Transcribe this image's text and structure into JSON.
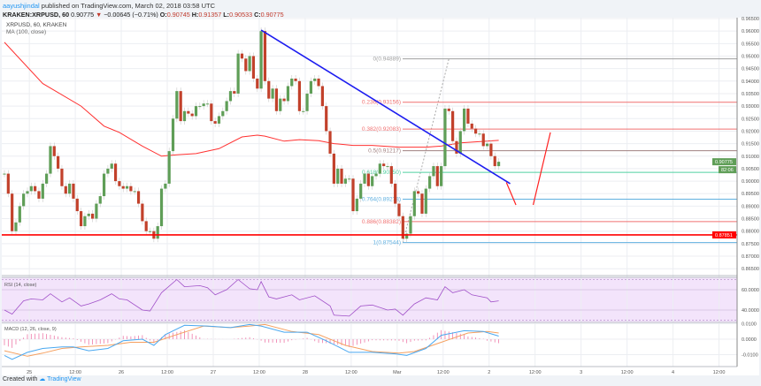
{
  "header": {
    "author": "aayushjindal",
    "published": "published on TradingView.com, March 02, 2018 03:58 UTC",
    "symbol": "KRAKEN:XRPUSD, 60",
    "last": "0.90775",
    "change": "−0.00645 (−0.71%)",
    "o_label": "O:",
    "o": "0.90745",
    "h_label": "H:",
    "h": "0.91357",
    "l_label": "L:",
    "l": "0.90533",
    "c_label": "C:",
    "c": "0.90775"
  },
  "footer": {
    "created": "Created with",
    "brand": "TradingView"
  },
  "colors": {
    "up": "#5f9e57",
    "down": "#c2412b",
    "ma": "#ff3030",
    "trend": "#1d1df0",
    "support": "#ff0000",
    "rsi": "#a050c8",
    "macd": "#4aa8f0",
    "signal": "#f5a060",
    "hist": "#ee7aa8",
    "last_price": "#5f9e57"
  },
  "chart_data": {
    "type": "candlestick",
    "pane_label": "XRPUSD, 60, KRAKEN",
    "ma_label": "MA (100, close)",
    "ylim": [
      0.8625,
      0.9665
    ],
    "y_ticks": [
      "0.86500",
      "0.87000",
      "0.87500",
      "0.88000",
      "0.88500",
      "0.89000",
      "0.89500",
      "0.90000",
      "0.90500",
      "0.91000",
      "0.91500",
      "0.92000",
      "0.92500",
      "0.93000",
      "0.93500",
      "0.94000",
      "0.94500",
      "0.95000",
      "0.95500",
      "0.96000",
      "0.96500"
    ],
    "x_ticks": [
      {
        "bar": 6.5,
        "label": "25"
      },
      {
        "bar": 18.5,
        "label": "12:00"
      },
      {
        "bar": 30.5,
        "label": "26"
      },
      {
        "bar": 42.5,
        "label": "12:00"
      },
      {
        "bar": 54.5,
        "label": "27"
      },
      {
        "bar": 66.5,
        "label": "12:00"
      },
      {
        "bar": 78.5,
        "label": "28"
      },
      {
        "bar": 90.5,
        "label": "12:00"
      },
      {
        "bar": 102.5,
        "label": "Mar"
      },
      {
        "bar": 114.5,
        "label": "12:00"
      },
      {
        "bar": 126.5,
        "label": "2"
      },
      {
        "bar": 138.5,
        "label": "12:00"
      },
      {
        "bar": 150.5,
        "label": "3"
      },
      {
        "bar": 162.5,
        "label": "12:00"
      },
      {
        "bar": 174.5,
        "label": "4"
      },
      {
        "bar": 186.5,
        "label": "12:00"
      }
    ],
    "closes": [
      0.903,
      0.895,
      0.88,
      0.8835,
      0.89,
      0.895,
      0.896,
      0.898,
      0.896,
      0.893,
      0.899,
      0.903,
      0.914,
      0.91,
      0.905,
      0.898,
      0.895,
      0.899,
      0.893,
      0.888,
      0.882,
      0.886,
      0.887,
      0.885,
      0.891,
      0.894,
      0.903,
      0.905,
      0.907,
      0.9,
      0.898,
      0.897,
      0.898,
      0.896,
      0.896,
      0.891,
      0.884,
      0.88,
      0.88,
      0.877,
      0.882,
      0.897,
      0.899,
      0.912,
      0.925,
      0.936,
      0.924,
      0.928,
      0.927,
      0.926,
      0.93,
      0.93,
      0.931,
      0.931,
      0.924,
      0.923,
      0.926,
      0.928,
      0.932,
      0.936,
      0.935,
      0.951,
      0.949,
      0.944,
      0.95,
      0.941,
      0.937,
      0.96,
      0.94,
      0.933,
      0.937,
      0.928,
      0.933,
      0.932,
      0.938,
      0.941,
      0.94,
      0.928,
      0.928,
      0.935,
      0.94,
      0.941,
      0.938,
      0.93,
      0.92,
      0.911,
      0.899,
      0.905,
      0.899,
      0.901,
      0.901,
      0.888,
      0.893,
      0.899,
      0.903,
      0.898,
      0.902,
      0.903,
      0.907,
      0.906,
      0.906,
      0.899,
      0.891,
      0.886,
      0.877,
      0.879,
      0.886,
      0.896,
      0.895,
      0.887,
      0.897,
      0.902,
      0.906,
      0.898,
      0.906,
      0.929,
      0.928,
      0.916,
      0.911,
      0.92,
      0.929,
      0.923,
      0.921,
      0.919,
      0.919,
      0.914,
      0.915,
      0.91,
      0.906,
      0.90775
    ],
    "ma100": [
      [
        0,
        0.9555
      ],
      [
        10,
        0.939
      ],
      [
        20,
        0.93
      ],
      [
        26,
        0.922
      ],
      [
        30,
        0.9195
      ],
      [
        36,
        0.914
      ],
      [
        41,
        0.91
      ],
      [
        45,
        0.9105
      ],
      [
        50,
        0.911
      ],
      [
        56,
        0.913
      ],
      [
        62,
        0.9177
      ],
      [
        66,
        0.9184
      ],
      [
        68,
        0.918
      ],
      [
        73,
        0.916
      ],
      [
        77,
        0.9166
      ],
      [
        82,
        0.9162
      ],
      [
        86,
        0.915
      ],
      [
        91,
        0.9143
      ],
      [
        96,
        0.9143
      ],
      [
        103,
        0.9136
      ],
      [
        110,
        0.9136
      ],
      [
        114,
        0.914
      ],
      [
        119,
        0.9153
      ],
      [
        126,
        0.916
      ],
      [
        129,
        0.9163
      ]
    ],
    "trendline": {
      "from": [
        67,
        0.9604
      ],
      "to": [
        132,
        0.899
      ]
    },
    "support": {
      "value": 0.87851,
      "label": "0.87851"
    },
    "last_price": {
      "label": "0.90775",
      "countdown": "82:06",
      "value": 0.90775
    },
    "fib_extension_line": {
      "from": [
        104,
        0.87544
      ],
      "to": [
        116,
        0.94889
      ]
    },
    "fib_levels": [
      {
        "label": "0(0.94889)",
        "value": 0.94889,
        "color": "#a0a0a0"
      },
      {
        "label": "0.236(0.93156)",
        "value": 0.93156,
        "color": "#f07070"
      },
      {
        "label": "0.382(0.92083)",
        "value": 0.92083,
        "color": "#f07070"
      },
      {
        "label": "0.5(0.91217)",
        "value": 0.91217,
        "color": "#a08080"
      },
      {
        "label": "0.618(0.90350)",
        "value": 0.9035,
        "color": "#50d0a0"
      },
      {
        "label": "0.764(0.89278)",
        "value": 0.89278,
        "color": "#60b0e0"
      },
      {
        "label": "0.886(0.88382)",
        "value": 0.88382,
        "color": "#f07070"
      },
      {
        "label": "1(0.87544)",
        "value": 0.87544,
        "color": "#60b0e0"
      }
    ],
    "projection_arrows": [
      [
        [
          131,
          0.8995
        ],
        [
          133.5,
          0.8905
        ]
      ],
      [
        [
          138,
          0.8905
        ],
        [
          142.5,
          0.9195
        ]
      ]
    ],
    "rsi": {
      "label": "RSI (14, close)",
      "ticks": [
        "60.0000",
        "40.0000"
      ],
      "bands": [
        70,
        30
      ],
      "points": [
        [
          0,
          40
        ],
        [
          2,
          36
        ],
        [
          5,
          49
        ],
        [
          7,
          51
        ],
        [
          10,
          50
        ],
        [
          12,
          56
        ],
        [
          15,
          48
        ],
        [
          17,
          52
        ],
        [
          20,
          44
        ],
        [
          22,
          46
        ],
        [
          25,
          50
        ],
        [
          28,
          56
        ],
        [
          30,
          51
        ],
        [
          32,
          50
        ],
        [
          36,
          40
        ],
        [
          38,
          39
        ],
        [
          41,
          57
        ],
        [
          45,
          70
        ],
        [
          47,
          63
        ],
        [
          51,
          64
        ],
        [
          53,
          62
        ],
        [
          55,
          55
        ],
        [
          58,
          60
        ],
        [
          61,
          70
        ],
        [
          64,
          61
        ],
        [
          66,
          60
        ],
        [
          67,
          68
        ],
        [
          69,
          53
        ],
        [
          71,
          51
        ],
        [
          75,
          55
        ],
        [
          77,
          50
        ],
        [
          81,
          54
        ],
        [
          85,
          44
        ],
        [
          86,
          35
        ],
        [
          90,
          34
        ],
        [
          93,
          44
        ],
        [
          96,
          45
        ],
        [
          100,
          40
        ],
        [
          102,
          41
        ],
        [
          104,
          35
        ],
        [
          107,
          46
        ],
        [
          110,
          52
        ],
        [
          113,
          50
        ],
        [
          115,
          63
        ],
        [
          117,
          57
        ],
        [
          120,
          60
        ],
        [
          122,
          55
        ],
        [
          126,
          52
        ],
        [
          127,
          48
        ],
        [
          129,
          49
        ]
      ]
    },
    "macd": {
      "label": "MACD (12, 26, close, 9)",
      "ticks": [
        "0.0100",
        "0.0000",
        "-0.0100"
      ],
      "macd": [
        [
          0,
          -0.0105
        ],
        [
          2,
          -0.013
        ],
        [
          6,
          -0.0085
        ],
        [
          10,
          -0.006
        ],
        [
          15,
          -0.005
        ],
        [
          18,
          -0.005
        ],
        [
          22,
          -0.0075
        ],
        [
          27,
          -0.006
        ],
        [
          31,
          -0.001
        ],
        [
          36,
          0.0
        ],
        [
          39,
          -0.004
        ],
        [
          42,
          0.003
        ],
        [
          47,
          0.009
        ],
        [
          53,
          0.0085
        ],
        [
          59,
          0.0075
        ],
        [
          64,
          0.0095
        ],
        [
          67,
          0.0085
        ],
        [
          73,
          0.0045
        ],
        [
          79,
          0.0045
        ],
        [
          84,
          -0.001
        ],
        [
          90,
          -0.0085
        ],
        [
          96,
          -0.0085
        ],
        [
          102,
          -0.0095
        ],
        [
          105,
          -0.0105
        ],
        [
          110,
          -0.006
        ],
        [
          114,
          0.0025
        ],
        [
          120,
          0.0055
        ],
        [
          125,
          0.005
        ],
        [
          129,
          0.002
        ]
      ],
      "signal": [
        [
          0,
          -0.0075
        ],
        [
          6,
          -0.011
        ],
        [
          10,
          -0.009
        ],
        [
          15,
          -0.006
        ],
        [
          20,
          -0.005
        ],
        [
          27,
          -0.004
        ],
        [
          33,
          -0.002
        ],
        [
          39,
          -0.002
        ],
        [
          45,
          0.003
        ],
        [
          52,
          0.0085
        ],
        [
          59,
          0.0075
        ],
        [
          64,
          0.0085
        ],
        [
          68,
          0.0095
        ],
        [
          75,
          0.005
        ],
        [
          82,
          0.003
        ],
        [
          89,
          -0.004
        ],
        [
          96,
          -0.008
        ],
        [
          103,
          -0.009
        ],
        [
          107,
          -0.008
        ],
        [
          114,
          -0.002
        ],
        [
          121,
          0.004
        ],
        [
          126,
          0.005
        ],
        [
          129,
          0.004
        ]
      ]
    }
  }
}
